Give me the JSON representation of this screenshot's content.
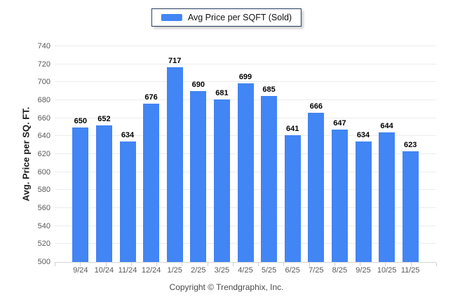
{
  "legend": {
    "label": "Avg Price per SQFT (Sold)"
  },
  "footer": {
    "text": "Copyright © Trendgraphix, Inc."
  },
  "colors": {
    "bar": "#4285f4",
    "grid": "#ececec",
    "baseline": "#d5d5d5",
    "tick": "#cfcfcf",
    "tick_label": "#58595b",
    "value_label": "#000000",
    "legend_border": "#233a60"
  },
  "chart_data": {
    "type": "bar",
    "categories": [
      "9/24",
      "10/24",
      "11/24",
      "12/24",
      "1/25",
      "2/25",
      "3/25",
      "4/25",
      "5/25",
      "6/25",
      "7/25",
      "8/25",
      "9/25",
      "10/25",
      "11/25"
    ],
    "values": [
      650,
      652,
      634,
      676,
      717,
      690,
      681,
      699,
      685,
      641,
      666,
      647,
      634,
      644,
      623
    ],
    "series_name": "Avg Price per SQFT (Sold)",
    "title": "",
    "xlabel": "",
    "ylabel": "Avg. Price per SQ. FT.",
    "ylim": [
      500,
      740
    ],
    "ytick_step": 20,
    "grid": true,
    "legend_position": "top-center"
  }
}
